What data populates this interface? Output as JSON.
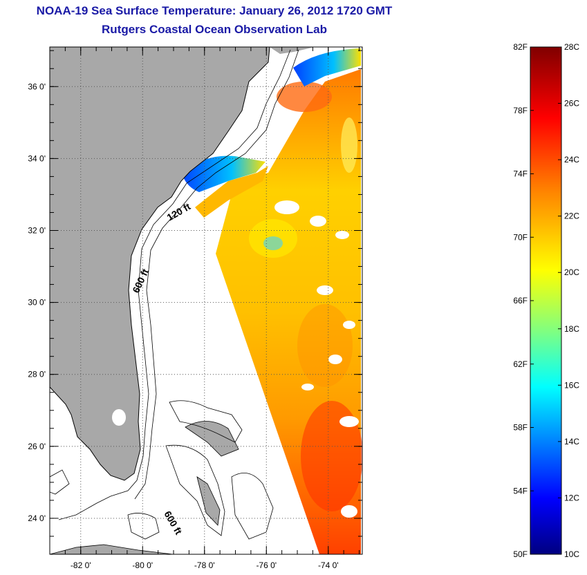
{
  "title": "NOAA-19 Sea Surface Temperature:  January 26, 2012 1720 GMT",
  "subtitle": "Rutgers Coastal Ocean Observation Lab",
  "map": {
    "lon_range": [
      -83,
      -72.9
    ],
    "lat_range": [
      23,
      37.1
    ],
    "lat_ticks": [
      {
        "value": 24,
        "label": "24 0'"
      },
      {
        "value": 26,
        "label": "26 0'"
      },
      {
        "value": 28,
        "label": "28 0'"
      },
      {
        "value": 30,
        "label": "30 0'"
      },
      {
        "value": 32,
        "label": "32 0'"
      },
      {
        "value": 34,
        "label": "34 0'"
      },
      {
        "value": 36,
        "label": "36 0'"
      }
    ],
    "lon_ticks": [
      {
        "value": -82,
        "label": "-82 0'"
      },
      {
        "value": -80,
        "label": "-80 0'"
      },
      {
        "value": -78,
        "label": "-78 0'"
      },
      {
        "value": -76,
        "label": "-76 0'"
      },
      {
        "value": -74,
        "label": "-74 0'"
      }
    ],
    "grid": true,
    "contour_labels": [
      "120 ft",
      "600 ft",
      "600 ft"
    ],
    "colors": {
      "land": "#a8a8a8",
      "contour": "#000000",
      "grid": "#555555"
    }
  },
  "colorbar": {
    "fahrenheit_labels": [
      "82F",
      "78F",
      "74F",
      "70F",
      "66F",
      "62F",
      "58F",
      "54F",
      "50F"
    ],
    "celsius_labels": [
      "28C",
      "26C",
      "24C",
      "22C",
      "20C",
      "18C",
      "16C",
      "14C",
      "12C",
      "10C"
    ],
    "range_c": [
      10,
      28
    ],
    "colors": [
      "#000080",
      "#0000ff",
      "#0080ff",
      "#00ffff",
      "#80ff80",
      "#ffff00",
      "#ff8000",
      "#ff0000",
      "#800000"
    ]
  }
}
